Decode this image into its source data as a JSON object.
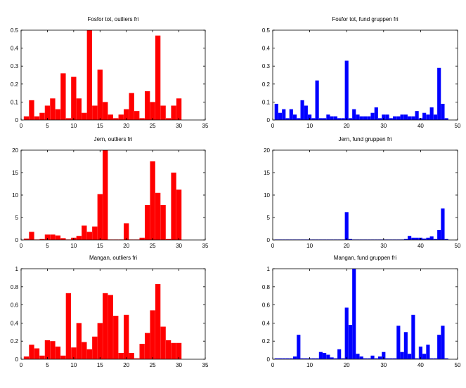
{
  "chart_data": [
    {
      "type": "bar",
      "title": "Fosfor tot, outliers fri",
      "color": "#ff0000",
      "xlim": [
        0,
        35
      ],
      "ylim": [
        0,
        0.5
      ],
      "xticks": [
        0,
        5,
        10,
        15,
        20,
        25,
        30,
        35
      ],
      "yticks": [
        0,
        0.1,
        0.2,
        0.3,
        0.4,
        0.5
      ],
      "xticklabels": [
        "0",
        "5",
        "10",
        "15",
        "20",
        "25",
        "30",
        "35"
      ],
      "yticklabels": [
        "0",
        "0.1",
        "0.2",
        "0.3",
        "0.4",
        "0.5"
      ],
      "x": [
        1,
        2,
        3,
        4,
        5,
        6,
        7,
        8,
        9,
        10,
        11,
        12,
        13,
        14,
        15,
        16,
        17,
        18,
        19,
        20,
        21,
        22,
        23,
        24,
        25,
        26,
        27,
        28,
        29,
        30
      ],
      "values": [
        0.02,
        0.11,
        0.02,
        0.04,
        0.08,
        0.12,
        0.06,
        0.26,
        0.01,
        0.24,
        0.12,
        0.04,
        0.51,
        0.08,
        0.28,
        0.1,
        0.03,
        0.01,
        0.03,
        0.06,
        0.15,
        0.05,
        0.01,
        0.16,
        0.1,
        0.47,
        0.08,
        0.01,
        0.08,
        0.12
      ]
    },
    {
      "type": "bar",
      "title": "Fosfor tot, fund gruppen fri",
      "color": "#0000ff",
      "xlim": [
        0,
        50
      ],
      "ylim": [
        0,
        0.5
      ],
      "xticks": [
        0,
        10,
        20,
        30,
        40,
        50
      ],
      "yticks": [
        0,
        0.1,
        0.2,
        0.3,
        0.4,
        0.5
      ],
      "xticklabels": [
        "0",
        "10",
        "20",
        "30",
        "40",
        "50"
      ],
      "yticklabels": [
        "0",
        "0.1",
        "0.2",
        "0.3",
        "0.4",
        "0.5"
      ],
      "x": [
        1,
        2,
        3,
        4,
        5,
        6,
        7,
        8,
        9,
        10,
        11,
        12,
        13,
        14,
        15,
        16,
        17,
        18,
        19,
        20,
        21,
        22,
        23,
        24,
        25,
        26,
        27,
        28,
        29,
        30,
        31,
        32,
        33,
        34,
        35,
        36,
        37,
        38,
        39,
        40,
        41,
        42,
        43,
        44,
        45,
        46,
        47
      ],
      "values": [
        0.09,
        0.04,
        0.06,
        0.01,
        0.06,
        0.03,
        0.01,
        0.11,
        0.08,
        0.03,
        0.01,
        0.22,
        0.01,
        0.01,
        0.03,
        0.02,
        0.02,
        0.01,
        0.01,
        0.33,
        0.01,
        0.06,
        0.03,
        0.02,
        0.02,
        0.02,
        0.04,
        0.07,
        0.01,
        0.03,
        0.03,
        0.01,
        0.02,
        0.02,
        0.03,
        0.03,
        0.02,
        0.02,
        0.05,
        0.01,
        0.04,
        0.03,
        0.07,
        0.03,
        0.29,
        0.09,
        0.01
      ]
    },
    {
      "type": "bar",
      "title": "Jern, outliers fri",
      "color": "#ff0000",
      "xlim": [
        0,
        35
      ],
      "ylim": [
        0,
        20
      ],
      "xticks": [
        0,
        5,
        10,
        15,
        20,
        25,
        30,
        35
      ],
      "yticks": [
        0,
        5,
        10,
        15,
        20
      ],
      "xticklabels": [
        "0",
        "5",
        "10",
        "15",
        "20",
        "25",
        "30",
        "35"
      ],
      "yticklabels": [
        "0",
        "5",
        "10",
        "15",
        "20"
      ],
      "x": [
        1,
        2,
        3,
        4,
        5,
        6,
        7,
        8,
        9,
        10,
        11,
        12,
        13,
        14,
        15,
        16,
        17,
        18,
        19,
        20,
        21,
        22,
        23,
        24,
        25,
        26,
        27,
        28,
        29,
        30
      ],
      "values": [
        0.3,
        1.8,
        0.1,
        0.2,
        1.2,
        1.2,
        1.0,
        0.4,
        0.1,
        0.5,
        0.9,
        3.2,
        1.8,
        3.0,
        10.2,
        20.0,
        0.1,
        0.1,
        0.1,
        3.7,
        0.1,
        0.1,
        0.5,
        7.8,
        17.5,
        10.5,
        7.8,
        0.2,
        15.0,
        11.2
      ]
    },
    {
      "type": "bar",
      "title": "Jern, fund gruppen fri",
      "color": "#0000ff",
      "xlim": [
        0,
        50
      ],
      "ylim": [
        0,
        20
      ],
      "xticks": [
        0,
        10,
        20,
        30,
        40,
        50
      ],
      "yticks": [
        0,
        5,
        10,
        15,
        20
      ],
      "xticklabels": [
        "0",
        "10",
        "20",
        "30",
        "40",
        "50"
      ],
      "yticklabels": [
        "0",
        "5",
        "10",
        "15",
        "20"
      ],
      "x": [
        1,
        2,
        3,
        4,
        5,
        6,
        7,
        8,
        9,
        10,
        11,
        12,
        13,
        14,
        15,
        16,
        17,
        18,
        19,
        20,
        21,
        22,
        23,
        24,
        25,
        26,
        27,
        28,
        29,
        30,
        31,
        32,
        33,
        34,
        35,
        36,
        37,
        38,
        39,
        40,
        41,
        42,
        43,
        44,
        45,
        46,
        47
      ],
      "values": [
        0.1,
        0.1,
        0.1,
        0.1,
        0.1,
        0.1,
        0.1,
        0.1,
        0.1,
        0.1,
        0.1,
        0.1,
        0.1,
        0.1,
        0.1,
        0.1,
        0.1,
        0.1,
        0.1,
        6.2,
        0.2,
        0.1,
        0.1,
        0.1,
        0.1,
        0.1,
        0.1,
        0.1,
        0.1,
        0.1,
        0.1,
        0.1,
        0.1,
        0.1,
        0.1,
        0.2,
        0.9,
        0.5,
        0.5,
        0.5,
        0.3,
        0.5,
        0.8,
        0.2,
        2.2,
        7.0,
        0.2
      ]
    },
    {
      "type": "bar",
      "title": "Mangan, outliers fri",
      "color": "#ff0000",
      "xlim": [
        0,
        35
      ],
      "ylim": [
        0,
        1
      ],
      "xticks": [
        0,
        5,
        10,
        15,
        20,
        25,
        30,
        35
      ],
      "yticks": [
        0,
        0.2,
        0.4,
        0.6,
        0.8,
        1
      ],
      "xticklabels": [
        "0",
        "5",
        "10",
        "15",
        "20",
        "25",
        "30",
        "35"
      ],
      "yticklabels": [
        "0",
        "0.2",
        "0.4",
        "0.6",
        "0.8",
        "1"
      ],
      "x": [
        1,
        2,
        3,
        4,
        5,
        6,
        7,
        8,
        9,
        10,
        11,
        12,
        13,
        14,
        15,
        16,
        17,
        18,
        19,
        20,
        21,
        22,
        23,
        24,
        25,
        26,
        27,
        28,
        29,
        30
      ],
      "values": [
        0.03,
        0.16,
        0.12,
        0.04,
        0.21,
        0.2,
        0.14,
        0.04,
        0.73,
        0.13,
        0.4,
        0.19,
        0.11,
        0.25,
        0.4,
        0.73,
        0.71,
        0.48,
        0.07,
        0.49,
        0.07,
        0.01,
        0.17,
        0.29,
        0.54,
        0.83,
        0.36,
        0.21,
        0.18,
        0.18
      ]
    },
    {
      "type": "bar",
      "title": "Mangan, fund gruppen fri",
      "color": "#0000ff",
      "xlim": [
        0,
        50
      ],
      "ylim": [
        0,
        1
      ],
      "xticks": [
        0,
        10,
        20,
        30,
        40,
        50
      ],
      "yticks": [
        0,
        0.2,
        0.4,
        0.6,
        0.8,
        1
      ],
      "xticklabels": [
        "0",
        "10",
        "20",
        "30",
        "40",
        "50"
      ],
      "yticklabels": [
        "0",
        "0.2",
        "0.4",
        "0.6",
        "0.8",
        "1"
      ],
      "x": [
        1,
        2,
        3,
        4,
        5,
        6,
        7,
        8,
        9,
        10,
        11,
        12,
        13,
        14,
        15,
        16,
        17,
        18,
        19,
        20,
        21,
        22,
        23,
        24,
        25,
        26,
        27,
        28,
        29,
        30,
        31,
        32,
        33,
        34,
        35,
        36,
        37,
        38,
        39,
        40,
        41,
        42,
        43,
        44,
        45,
        46,
        47
      ],
      "values": [
        0.01,
        0.01,
        0.01,
        0.01,
        0.01,
        0.03,
        0.27,
        0.01,
        0.01,
        0.01,
        0.01,
        0.01,
        0.08,
        0.07,
        0.05,
        0.02,
        0.01,
        0.11,
        0.01,
        0.57,
        0.38,
        1.0,
        0.06,
        0.03,
        0.01,
        0.01,
        0.04,
        0.01,
        0.03,
        0.08,
        0.01,
        0.01,
        0.01,
        0.37,
        0.08,
        0.3,
        0.06,
        0.49,
        0.01,
        0.14,
        0.06,
        0.16,
        0.01,
        0.01,
        0.27,
        0.37,
        0.01
      ]
    }
  ]
}
